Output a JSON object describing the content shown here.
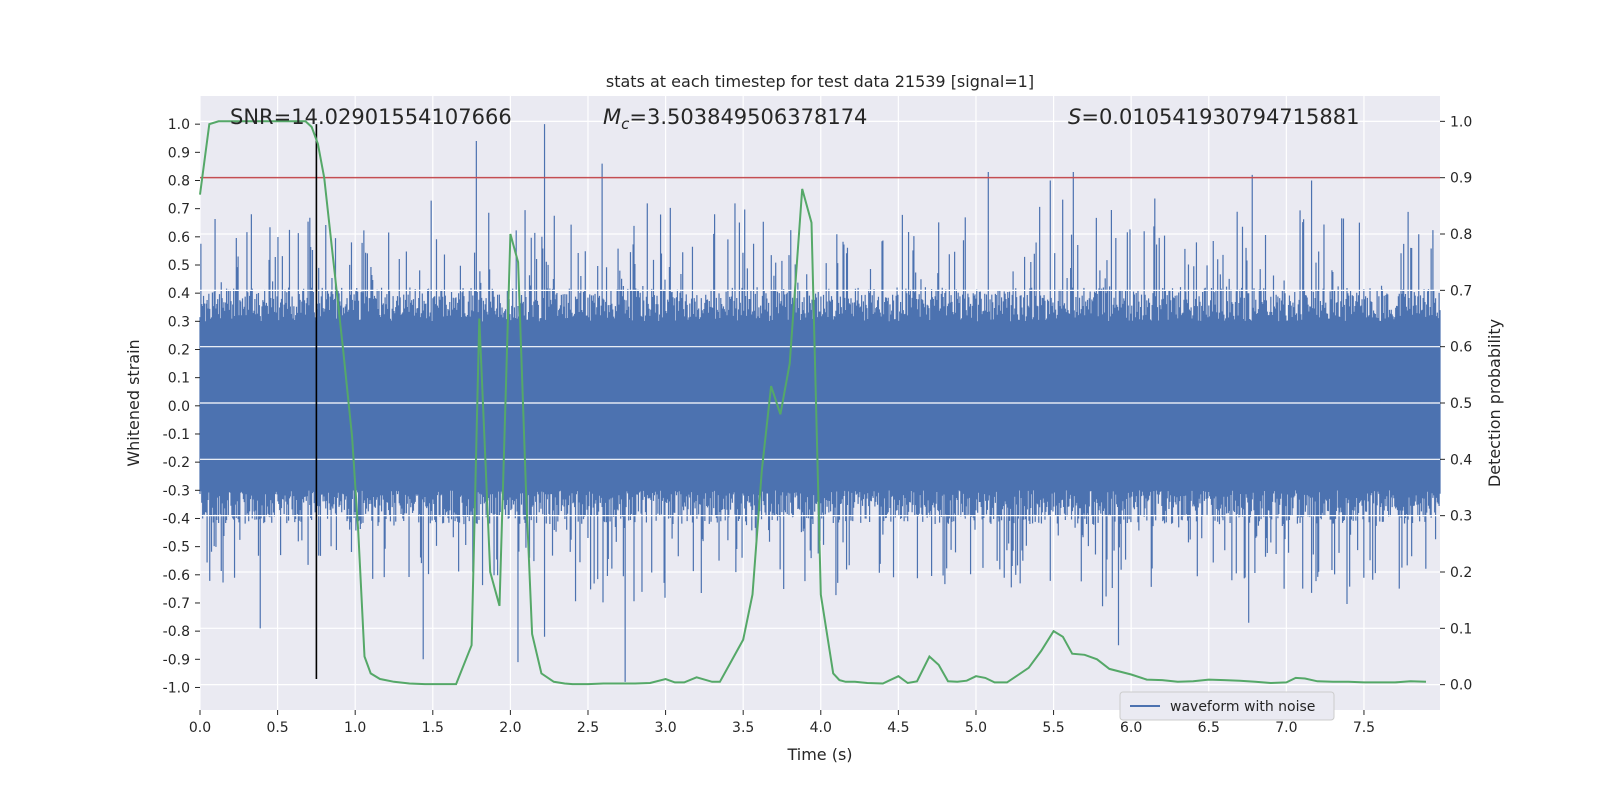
{
  "chart_data": {
    "type": "line",
    "title": "stats at each timestep for test data 21539 [signal=1]",
    "xlabel": "Time (s)",
    "ylabel": "Whitened strain",
    "y2label": "Detection probability",
    "xlim": [
      0.0,
      7.99
    ],
    "ylim": [
      -1.08,
      1.1
    ],
    "y2lim": [
      -0.045,
      1.045
    ],
    "xticks": [
      "0.0",
      "0.5",
      "1.0",
      "1.5",
      "2.0",
      "2.5",
      "3.0",
      "3.5",
      "4.0",
      "4.5",
      "5.0",
      "5.5",
      "6.0",
      "6.5",
      "7.0",
      "7.5"
    ],
    "xtick_values": [
      0.0,
      0.5,
      1.0,
      1.5,
      2.0,
      2.5,
      3.0,
      3.5,
      4.0,
      4.5,
      5.0,
      5.5,
      6.0,
      6.5,
      7.0,
      7.5
    ],
    "yticks": [
      "-1.0",
      "-0.9",
      "-0.8",
      "-0.7",
      "-0.6",
      "-0.5",
      "-0.4",
      "-0.3",
      "-0.2",
      "-0.1",
      "0.0",
      "0.1",
      "0.2",
      "0.3",
      "0.4",
      "0.5",
      "0.6",
      "0.7",
      "0.8",
      "0.9",
      "1.0"
    ],
    "ytick_values": [
      -1.0,
      -0.9,
      -0.8,
      -0.7,
      -0.6,
      -0.5,
      -0.4,
      -0.3,
      -0.2,
      -0.1,
      0.0,
      0.1,
      0.2,
      0.3,
      0.4,
      0.5,
      0.6,
      0.7,
      0.8,
      0.9,
      1.0
    ],
    "y2ticks": [
      "0.0",
      "0.1",
      "0.2",
      "0.3",
      "0.4",
      "0.5",
      "0.6",
      "0.7",
      "0.8",
      "0.9",
      "1.0"
    ],
    "y2tick_values": [
      0.0,
      0.1,
      0.2,
      0.3,
      0.4,
      0.5,
      0.6,
      0.7,
      0.8,
      0.9,
      1.0
    ],
    "grid": true,
    "legend": {
      "placement": "lower-right",
      "entries": [
        "waveform with noise"
      ]
    },
    "annotations": {
      "snr": "SNR=14.02901554107666",
      "mc_symbol": "M",
      "mc_sub": "c",
      "mc_value": "=3.503849506378174",
      "s_symbol": "S",
      "s_value": "=0.010541930794715881"
    },
    "threshold_line": {
      "axis": "y2",
      "value": 0.9,
      "color": "#c44e52"
    },
    "vertical_line": {
      "x": 0.75,
      "y_range": [
        -0.97,
        1.0
      ],
      "color": "#000000"
    },
    "waveform": {
      "name": "waveform with noise",
      "color": "#4c72b0",
      "peaks": [
        {
          "x": 1.78,
          "y": 0.94
        },
        {
          "x": 2.22,
          "y": 1.0
        },
        {
          "x": 2.59,
          "y": 0.86
        },
        {
          "x": 5.08,
          "y": 0.83
        },
        {
          "x": 5.48,
          "y": 0.8
        },
        {
          "x": 5.63,
          "y": 0.83
        },
        {
          "x": 6.78,
          "y": 0.82
        },
        {
          "x": 7.16,
          "y": 0.8
        }
      ],
      "troughs": [
        {
          "x": 0.39,
          "y": -0.79
        },
        {
          "x": 1.44,
          "y": -0.9
        },
        {
          "x": 2.05,
          "y": -0.91
        },
        {
          "x": 2.22,
          "y": -0.82
        },
        {
          "x": 2.74,
          "y": -0.98
        },
        {
          "x": 5.92,
          "y": -0.85
        },
        {
          "x": 6.76,
          "y": -0.77
        }
      ]
    },
    "series": [
      {
        "name": "",
        "axis": "y2",
        "color": "#55a868",
        "x": [
          0.0,
          0.06,
          0.12,
          0.2,
          0.3,
          0.4,
          0.5,
          0.6,
          0.68,
          0.72,
          0.76,
          0.8,
          0.86,
          0.92,
          0.98,
          1.02,
          1.06,
          1.1,
          1.16,
          1.25,
          1.35,
          1.45,
          1.55,
          1.65,
          1.75,
          1.8,
          1.87,
          1.93,
          2.0,
          2.05,
          2.1,
          2.14,
          2.2,
          2.28,
          2.35,
          2.4,
          2.5,
          2.6,
          2.7,
          2.8,
          2.9,
          3.0,
          3.06,
          3.12,
          3.2,
          3.3,
          3.35,
          3.42,
          3.5,
          3.56,
          3.62,
          3.68,
          3.74,
          3.8,
          3.88,
          3.94,
          4.0,
          4.08,
          4.12,
          4.16,
          4.22,
          4.3,
          4.4,
          4.5,
          4.56,
          4.62,
          4.7,
          4.76,
          4.82,
          4.88,
          4.94,
          5.0,
          5.06,
          5.12,
          5.2,
          5.26,
          5.34,
          5.42,
          5.5,
          5.56,
          5.62,
          5.7,
          5.78,
          5.86,
          6.0,
          6.1,
          6.2,
          6.3,
          6.4,
          6.5,
          6.6,
          6.7,
          6.8,
          6.9,
          7.0,
          7.06,
          7.12,
          7.2,
          7.3,
          7.4,
          7.5,
          7.6,
          7.7,
          7.8,
          7.9
        ],
        "values": [
          0.87,
          0.995,
          1.0,
          1.0,
          1.0,
          1.0,
          1.0,
          1.0,
          1.0,
          0.99,
          0.96,
          0.9,
          0.75,
          0.6,
          0.44,
          0.27,
          0.05,
          0.02,
          0.01,
          0.005,
          0.002,
          0.001,
          0.001,
          0.001,
          0.07,
          0.65,
          0.2,
          0.14,
          0.8,
          0.75,
          0.35,
          0.09,
          0.02,
          0.005,
          0.002,
          0.001,
          0.001,
          0.002,
          0.002,
          0.002,
          0.003,
          0.01,
          0.004,
          0.004,
          0.013,
          0.005,
          0.005,
          0.04,
          0.08,
          0.16,
          0.38,
          0.53,
          0.48,
          0.57,
          0.88,
          0.82,
          0.16,
          0.02,
          0.008,
          0.005,
          0.005,
          0.003,
          0.002,
          0.015,
          0.003,
          0.006,
          0.05,
          0.035,
          0.006,
          0.005,
          0.007,
          0.015,
          0.012,
          0.004,
          0.004,
          0.015,
          0.03,
          0.06,
          0.095,
          0.085,
          0.055,
          0.053,
          0.045,
          0.028,
          0.018,
          0.009,
          0.008,
          0.005,
          0.006,
          0.009,
          0.008,
          0.007,
          0.005,
          0.003,
          0.004,
          0.012,
          0.011,
          0.006,
          0.005,
          0.005,
          0.004,
          0.004,
          0.004,
          0.006,
          0.005
        ]
      }
    ]
  }
}
